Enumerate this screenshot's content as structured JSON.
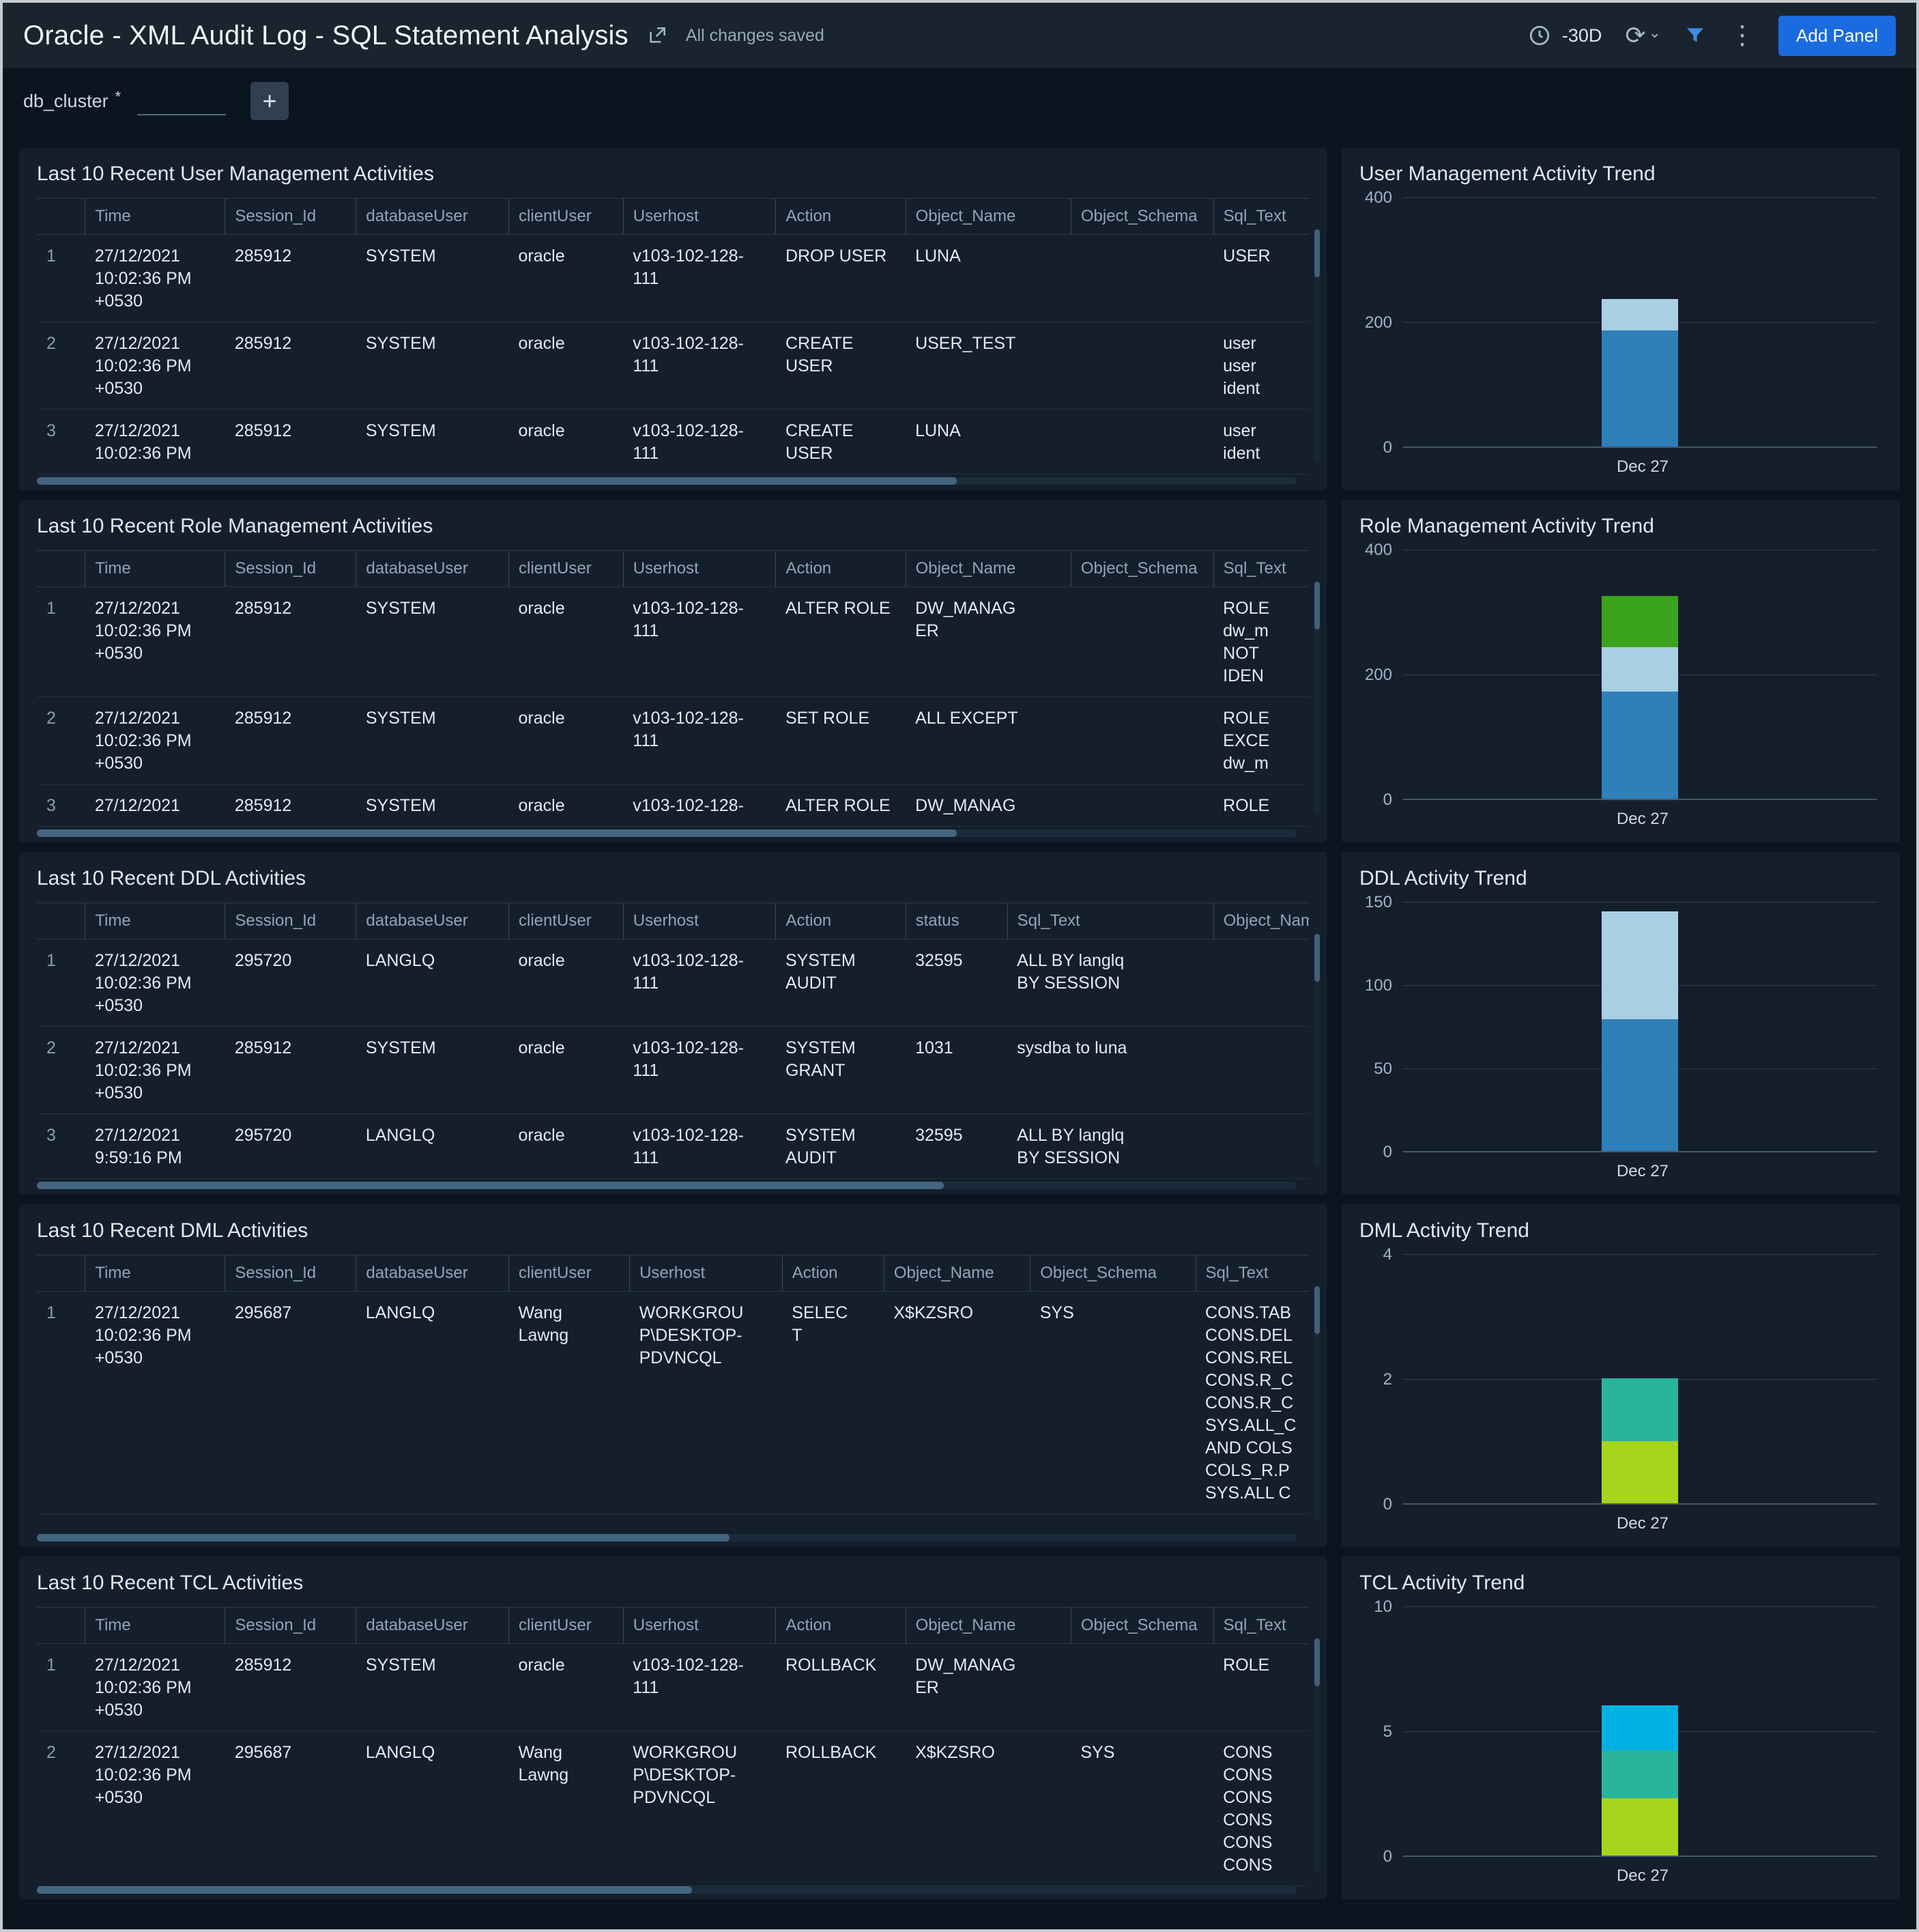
{
  "header": {
    "title": "Oracle - XML Audit Log - SQL Statement Analysis",
    "status_text": "All changes saved",
    "time_range": "-30D",
    "add_panel_label": "Add Panel"
  },
  "filter_bar": {
    "db_cluster_label": "db_cluster",
    "required_mark": "*",
    "value": "",
    "add_filter_label": "+"
  },
  "colors": {
    "page_bg": "#0b1520",
    "panel_bg": "#151f2c",
    "accent_blue": "#1a6be0",
    "bar_blue": "#2f7fb9",
    "bar_lightblue": "#a9cfe5",
    "bar_green": "#3ba31c",
    "bar_teal": "#28b59b",
    "bar_lime": "#a7d41c",
    "bar_cyan": "#00b2e3"
  },
  "table_panels": [
    {
      "title": "Last 10 Recent User Management Activities",
      "columns": [
        "Time",
        "Session_Id",
        "databaseUser",
        "clientUser",
        "Userhost",
        "Action",
        "Object_Name",
        "Object_Schema",
        "Sql_Text"
      ],
      "col_widths": [
        "3.8%",
        "11%",
        "10.3%",
        "12%",
        "9%",
        "12%",
        "10.2%",
        "13%",
        "11.2%",
        "7.5%"
      ],
      "rows": [
        [
          "27/12/2021\n10:02:36 PM\n+0530",
          "285912",
          "SYSTEM",
          "oracle",
          "v103-102-128-\n111",
          "DROP USER",
          "LUNA",
          "",
          "USER"
        ],
        [
          "27/12/2021\n10:02:36 PM\n+0530",
          "285912",
          "SYSTEM",
          "oracle",
          "v103-102-128-\n111",
          "CREATE\nUSER",
          "USER_TEST",
          "",
          "user\nuser\nident"
        ],
        [
          "27/12/2021\n10:02:36 PM",
          "285912",
          "SYSTEM",
          "oracle",
          "v103-102-128-\n111",
          "CREATE\nUSER",
          "LUNA",
          "",
          "user\nident"
        ]
      ],
      "h_thumb": 0.73
    },
    {
      "title": "Last 10 Recent Role Management Activities",
      "columns": [
        "Time",
        "Session_Id",
        "databaseUser",
        "clientUser",
        "Userhost",
        "Action",
        "Object_Name",
        "Object_Schema",
        "Sql_Text"
      ],
      "col_widths": [
        "3.8%",
        "11%",
        "10.3%",
        "12%",
        "9%",
        "12%",
        "10.2%",
        "13%",
        "11.2%",
        "7.5%"
      ],
      "rows": [
        [
          "27/12/2021\n10:02:36 PM\n+0530",
          "285912",
          "SYSTEM",
          "oracle",
          "v103-102-128-\n111",
          "ALTER ROLE",
          "DW_MANAG\nER",
          "",
          "ROLE\ndw_m\nNOT\nIDEN"
        ],
        [
          "27/12/2021\n10:02:36 PM\n+0530",
          "285912",
          "SYSTEM",
          "oracle",
          "v103-102-128-\n111",
          "SET ROLE",
          "ALL EXCEPT",
          "",
          "ROLE\nEXCE\ndw_m"
        ],
        [
          "27/12/2021",
          "285912",
          "SYSTEM",
          "oracle",
          "v103-102-128-",
          "ALTER ROLE",
          "DW_MANAG",
          "",
          "ROLE"
        ]
      ],
      "h_thumb": 0.73
    },
    {
      "title": "Last 10 Recent DDL Activities",
      "columns": [
        "Time",
        "Session_Id",
        "databaseUser",
        "clientUser",
        "Userhost",
        "Action",
        "status",
        "Sql_Text",
        "Object_Name"
      ],
      "col_widths": [
        "3.8%",
        "11%",
        "10.3%",
        "12%",
        "9%",
        "12%",
        "10.2%",
        "8%",
        "16.2%",
        "7.5%"
      ],
      "rows": [
        [
          "27/12/2021\n10:02:36 PM\n+0530",
          "295720",
          "LANGLQ",
          "oracle",
          "v103-102-128-\n111",
          "SYSTEM\nAUDIT",
          "32595",
          "ALL BY langlq\nBY SESSION",
          ""
        ],
        [
          "27/12/2021\n10:02:36 PM\n+0530",
          "285912",
          "SYSTEM",
          "oracle",
          "v103-102-128-\n111",
          "SYSTEM\nGRANT",
          "1031",
          "sysdba to luna",
          ""
        ],
        [
          "27/12/2021\n9:59:16 PM",
          "295720",
          "LANGLQ",
          "oracle",
          "v103-102-128-\n111",
          "SYSTEM\nAUDIT",
          "32595",
          "ALL BY langlq\nBY SESSION",
          ""
        ]
      ],
      "h_thumb": 0.72
    },
    {
      "title": "Last 10 Recent DML Activities",
      "columns": [
        "Time",
        "Session_Id",
        "databaseUser",
        "clientUser",
        "Userhost",
        "Action",
        "Object_Name",
        "Object_Schema",
        "Sql_Text"
      ],
      "col_widths": [
        "3.8%",
        "11%",
        "10.3%",
        "12%",
        "9.5%",
        "12%",
        "8%",
        "11.5%",
        "13%",
        "8.9%"
      ],
      "rows": [
        [
          "27/12/2021\n10:02:36 PM\n+0530",
          "295687",
          "LANGLQ",
          "Wang\nLawng",
          "WORKGROU\nP\\DESKTOP-\nPDVNCQL",
          "SELEC\nT",
          "X$KZSRO",
          "SYS",
          "CONS.TAB\nCONS.DEL\nCONS.REL\nCONS.R_C\nCONS.R_C\nSYS.ALL_C\nAND COLS\nCOLS_R.P\nSYS.ALL C"
        ]
      ],
      "h_thumb": 0.55
    },
    {
      "title": "Last 10 Recent TCL Activities",
      "columns": [
        "Time",
        "Session_Id",
        "databaseUser",
        "clientUser",
        "Userhost",
        "Action",
        "Object_Name",
        "Object_Schema",
        "Sql_Text"
      ],
      "col_widths": [
        "3.8%",
        "11%",
        "10.3%",
        "12%",
        "9%",
        "12%",
        "10.2%",
        "13%",
        "11.2%",
        "7.5%"
      ],
      "rows": [
        [
          "27/12/2021\n10:02:36 PM\n+0530",
          "285912",
          "SYSTEM",
          "oracle",
          "v103-102-128-\n111",
          "ROLLBACK",
          "DW_MANAG\nER",
          "",
          "ROLE"
        ],
        [
          "27/12/2021\n10:02:36 PM\n+0530",
          "295687",
          "LANGLQ",
          "Wang\nLawng",
          "WORKGROU\nP\\DESKTOP-\nPDVNCQL",
          "ROLLBACK",
          "X$KZSRO",
          "SYS",
          "CONS\nCONS\nCONS\nCONS\nCONS\nCONS"
        ]
      ],
      "h_thumb": 0.52
    }
  ],
  "chart_data": [
    {
      "type": "bar",
      "stacked": true,
      "title": "User Management Activity Trend",
      "categories": [
        "Dec 27"
      ],
      "xlabel": "",
      "ylabel": "",
      "ylim": [
        0,
        400
      ],
      "yticks": [
        0,
        200,
        400
      ],
      "legend": "none",
      "grid": true,
      "series": [
        {
          "name": "series-1",
          "color": "#2f7fb9",
          "values": [
            186
          ]
        },
        {
          "name": "series-2",
          "color": "#a9cfe5",
          "values": [
            50
          ]
        }
      ]
    },
    {
      "type": "bar",
      "stacked": true,
      "title": "Role Management Activity Trend",
      "categories": [
        "Dec 27"
      ],
      "xlabel": "",
      "ylabel": "",
      "ylim": [
        0,
        400
      ],
      "yticks": [
        0,
        200,
        400
      ],
      "legend": "none",
      "grid": true,
      "series": [
        {
          "name": "series-1",
          "color": "#2f7fb9",
          "values": [
            172
          ]
        },
        {
          "name": "series-2",
          "color": "#a9cfe5",
          "values": [
            71
          ]
        },
        {
          "name": "series-3",
          "color": "#3ba31c",
          "values": [
            82
          ]
        }
      ]
    },
    {
      "type": "bar",
      "stacked": true,
      "title": "DDL Activity Trend",
      "categories": [
        "Dec 27"
      ],
      "xlabel": "",
      "ylabel": "",
      "ylim": [
        0,
        150
      ],
      "yticks": [
        0,
        50,
        100,
        150
      ],
      "legend": "none",
      "grid": true,
      "series": [
        {
          "name": "series-1",
          "color": "#2f7fb9",
          "values": [
            79
          ]
        },
        {
          "name": "series-2",
          "color": "#a9cfe5",
          "values": [
            65
          ]
        }
      ]
    },
    {
      "type": "bar",
      "stacked": true,
      "title": "DML Activity Trend",
      "categories": [
        "Dec 27"
      ],
      "xlabel": "",
      "ylabel": "",
      "ylim": [
        0,
        4
      ],
      "yticks": [
        0,
        2,
        4
      ],
      "legend": "none",
      "grid": true,
      "series": [
        {
          "name": "series-1",
          "color": "#a7d41c",
          "values": [
            1
          ]
        },
        {
          "name": "series-2",
          "color": "#28b59b",
          "values": [
            1
          ]
        }
      ]
    },
    {
      "type": "bar",
      "stacked": true,
      "title": "TCL Activity Trend",
      "categories": [
        "Dec 27"
      ],
      "xlabel": "",
      "ylabel": "",
      "ylim": [
        0,
        10
      ],
      "yticks": [
        0,
        5,
        10
      ],
      "legend": "none",
      "grid": true,
      "series": [
        {
          "name": "series-1",
          "color": "#a7d41c",
          "values": [
            2.3
          ]
        },
        {
          "name": "series-2",
          "color": "#28b59b",
          "values": [
            1.9
          ]
        },
        {
          "name": "series-3",
          "color": "#00b2e3",
          "values": [
            1.8
          ]
        }
      ]
    }
  ]
}
